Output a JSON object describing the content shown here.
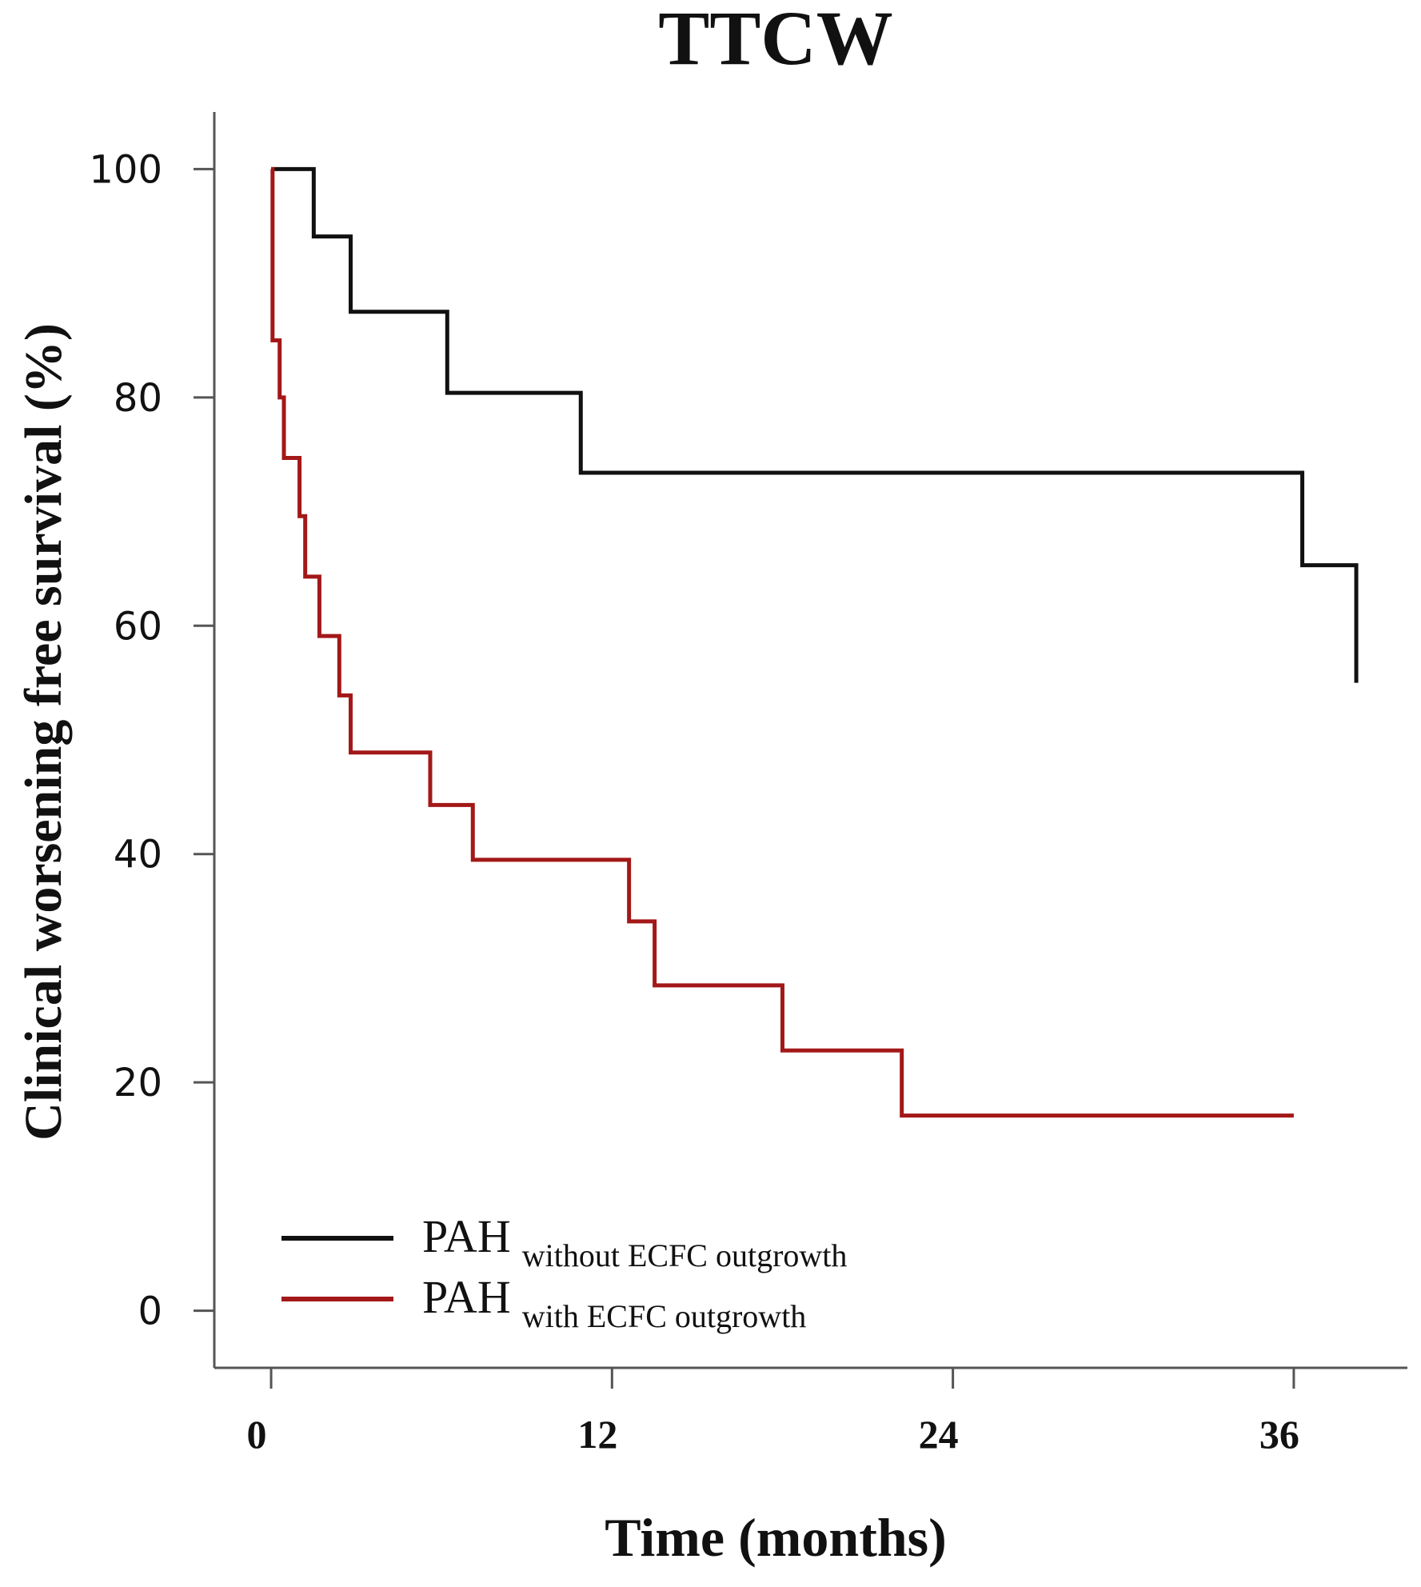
{
  "chart_data": {
    "type": "line",
    "step": true,
    "title": "TTCW",
    "xlabel": "Time (months)",
    "ylabel": "Clinical worsening free survival (%)",
    "xlim": [
      -2,
      40
    ],
    "ylim": [
      -5,
      105
    ],
    "xticks": [
      0,
      12,
      24,
      36
    ],
    "xtick_labels": [
      "0",
      "12",
      "24",
      "36"
    ],
    "yticks": [
      0,
      20,
      40,
      60,
      80,
      100
    ],
    "ytick_labels": [
      "0",
      "20",
      "40",
      "60",
      "80",
      "100"
    ],
    "grid": false,
    "legend_position": "bottom-left",
    "series": [
      {
        "name": "PAH without ECFC outgrowth",
        "legend_main": "PAH",
        "legend_sub": "without  ECFC outgrowth",
        "color": "#111111",
        "x": [
          0,
          1.5,
          2.8,
          6.2,
          10.9,
          36.3,
          38.2,
          38.2
        ],
        "y": [
          100,
          94.1,
          87.5,
          80.4,
          73.4,
          65.3,
          65.3,
          55
        ]
      },
      {
        "name": "PAH with ECFC outgrowth",
        "legend_main": "PAH",
        "legend_sub": "with ECFC outgrowth",
        "color": "#a31818",
        "x": [
          0,
          0.05,
          0.3,
          0.45,
          0.65,
          1.0,
          1.2,
          1.7,
          2.4,
          2.4,
          2.8,
          5.6,
          7.1,
          12.6,
          13.5,
          18.0,
          22.2,
          36.0
        ],
        "y": [
          100,
          85,
          80,
          74.7,
          74.7,
          69.6,
          64.3,
          59.1,
          59.1,
          53.9,
          48.9,
          44.3,
          39.5,
          34.1,
          28.5,
          22.8,
          17.1,
          17.1
        ]
      }
    ]
  }
}
